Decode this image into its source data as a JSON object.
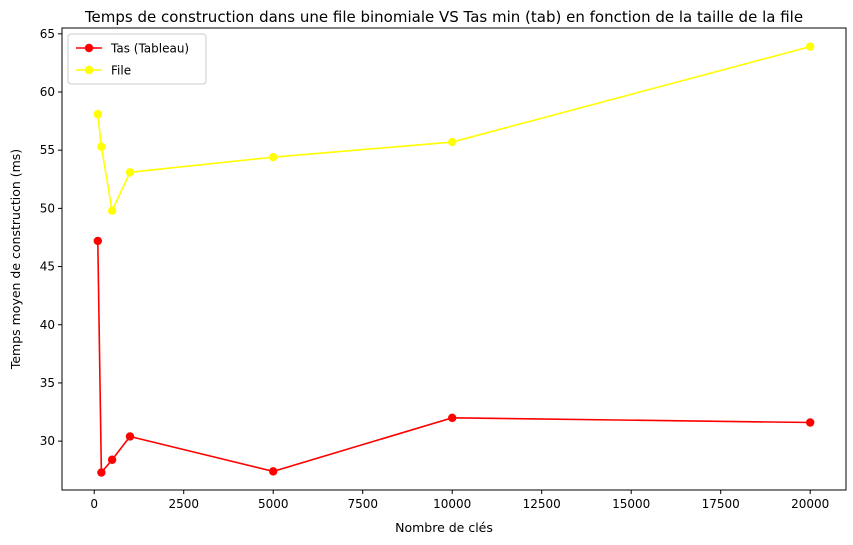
{
  "chart_data": {
    "type": "line",
    "title": "Temps de construction dans une file binomiale VS Tas min (tab) en fonction de la taille de la file",
    "xlabel": "Nombre de clés",
    "ylabel": "Temps moyen de construction (ms)",
    "x": [
      100,
      200,
      500,
      1000,
      5000,
      10000,
      20000
    ],
    "xlim": [
      -900,
      21000
    ],
    "ylim": [
      25.8,
      65.5
    ],
    "xticks": [
      0,
      2500,
      5000,
      7500,
      10000,
      12500,
      15000,
      17500,
      20000
    ],
    "xtick_labels": [
      "0",
      "2500",
      "5000",
      "7500",
      "10000",
      "12500",
      "15000",
      "17500",
      "20000"
    ],
    "yticks": [
      30,
      35,
      40,
      45,
      50,
      55,
      60,
      65
    ],
    "ytick_labels": [
      "30",
      "35",
      "40",
      "45",
      "50",
      "55",
      "60",
      "65"
    ],
    "grid": false,
    "legend_position": "top-left",
    "series": [
      {
        "name": "Tas (Tableau)",
        "color": "#ff0000",
        "values": [
          47.2,
          27.3,
          28.4,
          30.4,
          27.4,
          32.0,
          31.6
        ]
      },
      {
        "name": "File",
        "color": "#ffff00",
        "values": [
          58.1,
          55.3,
          49.8,
          53.1,
          54.4,
          55.7,
          63.9
        ]
      }
    ]
  }
}
